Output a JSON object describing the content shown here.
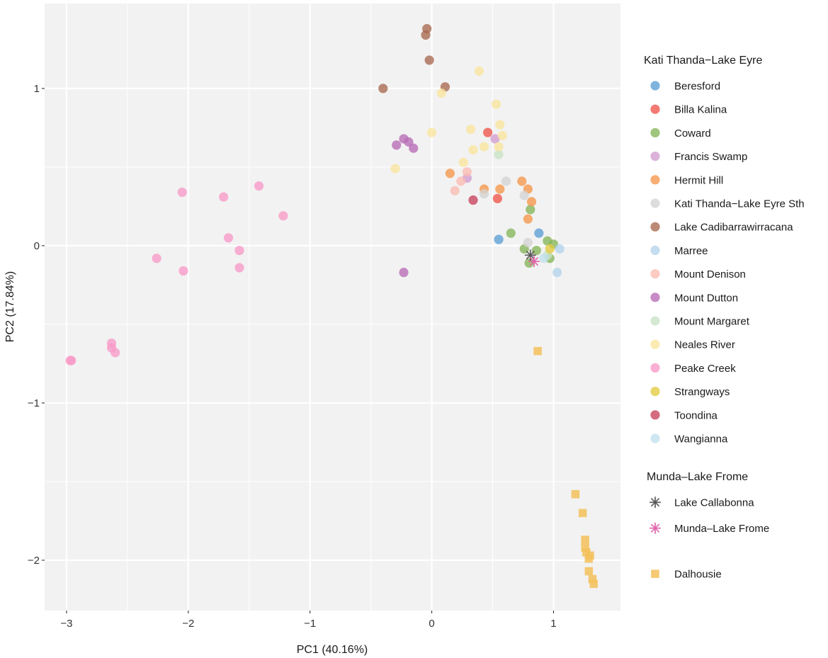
{
  "chart_data": {
    "type": "scatter",
    "xlabel": "PC1 (40.16%)",
    "ylabel": "PC2 (17.84%)",
    "xlim": [
      -3.18,
      1.55
    ],
    "ylim": [
      -2.32,
      1.54
    ],
    "xticks": [
      -3,
      -2,
      -1,
      0,
      1
    ],
    "yticks": [
      -2,
      -1,
      0,
      1
    ],
    "xtick_labels": [
      "−3",
      "−2",
      "−1",
      "0",
      "1"
    ],
    "ytick_labels": [
      "−2",
      "−1",
      "0",
      "1"
    ],
    "grid": true,
    "legend_position": "right",
    "legend_groups": [
      {
        "title": "Kati Thanda−Lake Eyre",
        "series": [
          "Beresford",
          "Billa Kalina",
          "Coward",
          "Francis Swamp",
          "Hermit Hill",
          "Kati Thanda−Lake Eyre Sth",
          "Lake Cadibarrawirracana",
          "Marree",
          "Mount Denison",
          "Mount Dutton",
          "Mount Margaret",
          "Neales River",
          "Peake Creek",
          "Strangways",
          "Toondina",
          "Wangianna"
        ]
      },
      {
        "title": "Munda–Lake Frome",
        "series": [
          "Lake Callabonna",
          "Munda–Lake Frome"
        ]
      },
      {
        "title": "",
        "series": [
          "Dalhousie"
        ]
      }
    ],
    "series": [
      {
        "name": "Beresford",
        "color": "#5b9fd6",
        "shape": "circle",
        "points": [
          [
            0.55,
            0.04
          ],
          [
            0.88,
            0.08
          ]
        ]
      },
      {
        "name": "Billa Kalina",
        "color": "#f0554a",
        "shape": "circle",
        "points": [
          [
            0.46,
            0.72
          ],
          [
            0.54,
            0.3
          ]
        ]
      },
      {
        "name": "Coward",
        "color": "#85b558",
        "shape": "circle",
        "points": [
          [
            0.65,
            0.08
          ],
          [
            0.76,
            -0.02
          ],
          [
            0.8,
            -0.11
          ],
          [
            0.81,
            0.23
          ],
          [
            0.86,
            -0.03
          ],
          [
            0.95,
            0.03
          ],
          [
            1.0,
            0.01
          ],
          [
            0.97,
            -0.08
          ]
        ]
      },
      {
        "name": "Francis Swamp",
        "color": "#d29ccf",
        "shape": "circle",
        "points": [
          [
            0.29,
            0.43
          ],
          [
            0.52,
            0.68
          ]
        ]
      },
      {
        "name": "Hermit Hill",
        "color": "#f6974a",
        "shape": "circle",
        "points": [
          [
            0.15,
            0.46
          ],
          [
            0.43,
            0.36
          ],
          [
            0.56,
            0.36
          ],
          [
            0.74,
            0.41
          ],
          [
            0.79,
            0.36
          ],
          [
            0.82,
            0.28
          ],
          [
            0.79,
            0.17
          ]
        ]
      },
      {
        "name": "Kati Thanda−Lake Eyre Sth",
        "color": "#d3d3d3",
        "shape": "circle",
        "points": [
          [
            0.43,
            0.33
          ],
          [
            0.61,
            0.41
          ],
          [
            0.76,
            0.32
          ],
          [
            0.79,
            0.02
          ]
        ]
      },
      {
        "name": "Lake Cadibarrawirracana",
        "color": "#a8694f",
        "shape": "circle",
        "points": [
          [
            -0.04,
            1.38
          ],
          [
            -0.05,
            1.34
          ],
          [
            -0.02,
            1.18
          ],
          [
            -0.4,
            1.0
          ],
          [
            0.11,
            1.01
          ]
        ]
      },
      {
        "name": "Marree",
        "color": "#b4d3ec",
        "shape": "circle",
        "points": [
          [
            1.05,
            -0.02
          ],
          [
            1.03,
            -0.17
          ]
        ]
      },
      {
        "name": "Mount Denison",
        "color": "#fbbcb2",
        "shape": "circle",
        "points": [
          [
            0.24,
            0.41
          ],
          [
            0.19,
            0.35
          ],
          [
            0.29,
            0.47
          ]
        ]
      },
      {
        "name": "Mount Dutton",
        "color": "#b76bb5",
        "shape": "circle",
        "points": [
          [
            -0.29,
            0.64
          ],
          [
            -0.23,
            0.68
          ],
          [
            -0.19,
            0.66
          ],
          [
            -0.15,
            0.62
          ],
          [
            -0.23,
            -0.17
          ]
        ]
      },
      {
        "name": "Mount Margaret",
        "color": "#c8e3c5",
        "shape": "circle",
        "points": [
          [
            0.55,
            0.58
          ],
          [
            0.95,
            -0.06
          ]
        ]
      },
      {
        "name": "Neales River",
        "color": "#fae59e",
        "shape": "circle",
        "points": [
          [
            0.39,
            1.11
          ],
          [
            0.08,
            0.97
          ],
          [
            0.53,
            0.9
          ],
          [
            0.56,
            0.77
          ],
          [
            0.32,
            0.74
          ],
          [
            0.0,
            0.72
          ],
          [
            0.58,
            0.7
          ],
          [
            0.43,
            0.63
          ],
          [
            0.34,
            0.61
          ],
          [
            0.55,
            0.63
          ],
          [
            0.26,
            0.53
          ],
          [
            -0.3,
            0.49
          ]
        ]
      },
      {
        "name": "Peake Creek",
        "color": "#f99ac8",
        "shape": "circle",
        "points": [
          [
            -2.05,
            0.34
          ],
          [
            -1.71,
            0.31
          ],
          [
            -1.42,
            0.38
          ],
          [
            -1.22,
            0.19
          ],
          [
            -1.67,
            0.05
          ],
          [
            -1.58,
            -0.03
          ],
          [
            -1.58,
            -0.14
          ],
          [
            -2.26,
            -0.08
          ],
          [
            -2.04,
            -0.16
          ],
          [
            -2.63,
            -0.62
          ],
          [
            -2.63,
            -0.65
          ],
          [
            -2.6,
            -0.68
          ],
          [
            -2.97,
            -0.73
          ],
          [
            -2.96,
            -0.73
          ]
        ]
      },
      {
        "name": "Strangways",
        "color": "#e3cb3f",
        "shape": "circle",
        "points": [
          [
            0.97,
            -0.02
          ]
        ]
      },
      {
        "name": "Toondina",
        "color": "#c9415a",
        "shape": "circle",
        "points": [
          [
            0.34,
            0.29
          ]
        ]
      },
      {
        "name": "Wangianna",
        "color": "#c2e0ee",
        "shape": "circle",
        "points": [
          [
            0.92,
            -0.08
          ]
        ]
      },
      {
        "name": "Lake Callabonna",
        "color": "#555555",
        "shape": "asterisk",
        "points": [
          [
            0.81,
            -0.06
          ]
        ]
      },
      {
        "name": "Munda–Lake Frome",
        "color": "#e061a8",
        "shape": "asterisk",
        "points": [
          [
            0.84,
            -0.1
          ]
        ]
      },
      {
        "name": "Dalhousie",
        "color": "#f3c15b",
        "shape": "square",
        "points": [
          [
            0.87,
            -0.67
          ],
          [
            1.18,
            -1.58
          ],
          [
            1.24,
            -1.7
          ],
          [
            1.26,
            -1.87
          ],
          [
            1.26,
            -1.92
          ],
          [
            1.27,
            -1.95
          ],
          [
            1.29,
            -1.99
          ],
          [
            1.3,
            -1.97
          ],
          [
            1.29,
            -2.07
          ],
          [
            1.32,
            -2.12
          ],
          [
            1.33,
            -2.15
          ]
        ]
      }
    ]
  }
}
